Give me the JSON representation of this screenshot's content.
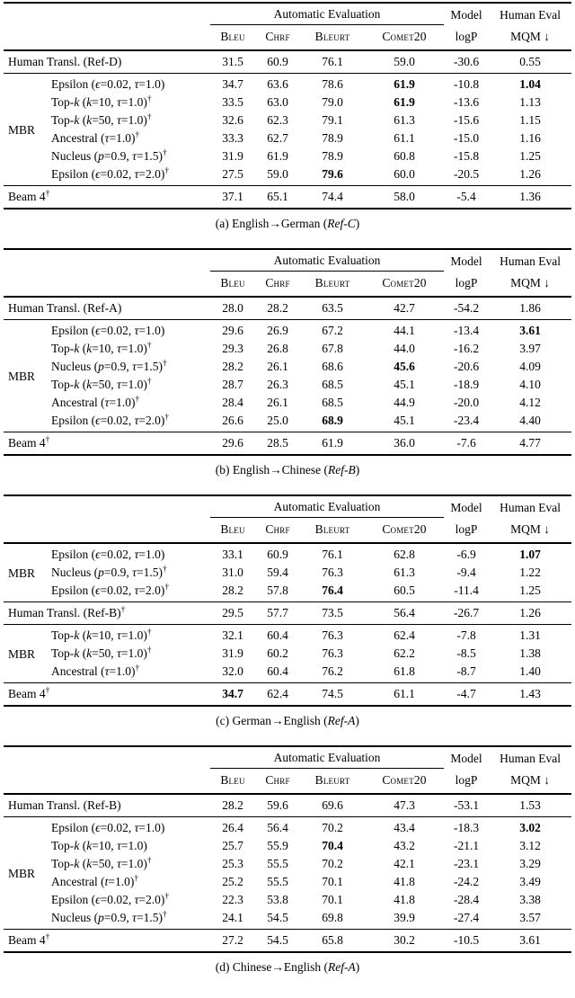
{
  "page": {
    "background": "#ffffff",
    "text_color": "#000000"
  },
  "header": {
    "auto_eval": "Automatic Evaluation",
    "model": "Model",
    "human_eval": "Human Eval",
    "metrics": [
      "Bleu",
      "Chrf",
      "Bleurt",
      "Comet20"
    ],
    "logp": "logP",
    "mqm": "MQM ↓"
  },
  "tables": [
    {
      "id": "a",
      "caption": "(a) English→German (Ref-C)",
      "sections": [
        {
          "rows": [
            {
              "label": "Human Transl. (Ref-D)",
              "values": [
                "31.5",
                "60.9",
                "76.1",
                "59.0",
                "-30.6",
                "0.55"
              ],
              "bold": []
            }
          ]
        },
        {
          "group": "MBR",
          "rows": [
            {
              "label": "Epsilon (ϵ=0.02, τ=1.0)",
              "values": [
                "34.7",
                "63.6",
                "78.6",
                "61.9",
                "-10.8",
                "1.04"
              ],
              "bold": [
                3,
                5
              ]
            },
            {
              "label": "Top-k (k=10, τ=1.0)†",
              "values": [
                "33.5",
                "63.0",
                "79.0",
                "61.9",
                "-13.6",
                "1.13"
              ],
              "bold": [
                3
              ]
            },
            {
              "label": "Top-k (k=50, τ=1.0)†",
              "values": [
                "32.6",
                "62.3",
                "79.1",
                "61.3",
                "-15.6",
                "1.15"
              ],
              "bold": []
            },
            {
              "label": "Ancestral (τ=1.0)†",
              "values": [
                "33.3",
                "62.7",
                "78.9",
                "61.1",
                "-15.0",
                "1.16"
              ],
              "bold": []
            },
            {
              "label": "Nucleus (p=0.9, τ=1.5)†",
              "values": [
                "31.9",
                "61.9",
                "78.9",
                "60.8",
                "-15.8",
                "1.25"
              ],
              "bold": []
            },
            {
              "label": "Epsilon (ϵ=0.02, τ=2.0)†",
              "values": [
                "27.5",
                "59.0",
                "79.6",
                "60.0",
                "-20.5",
                "1.26"
              ],
              "bold": [
                2
              ]
            }
          ]
        },
        {
          "rows": [
            {
              "label": "Beam 4†",
              "values": [
                "37.1",
                "65.1",
                "74.4",
                "58.0",
                "-5.4",
                "1.36"
              ],
              "bold": []
            }
          ]
        }
      ]
    },
    {
      "id": "b",
      "caption": "(b) English→Chinese (Ref-B)",
      "sections": [
        {
          "rows": [
            {
              "label": "Human Transl. (Ref-A)",
              "values": [
                "28.0",
                "28.2",
                "63.5",
                "42.7",
                "-54.2",
                "1.86"
              ],
              "bold": []
            }
          ]
        },
        {
          "group": "MBR",
          "rows": [
            {
              "label": "Epsilon (ϵ=0.02, τ=1.0)",
              "values": [
                "29.6",
                "26.9",
                "67.2",
                "44.1",
                "-13.4",
                "3.61"
              ],
              "bold": [
                5
              ]
            },
            {
              "label": "Top-k (k=10, τ=1.0)†",
              "values": [
                "29.3",
                "26.8",
                "67.8",
                "44.0",
                "-16.2",
                "3.97"
              ],
              "bold": []
            },
            {
              "label": "Nucleus (p=0.9, τ=1.5)†",
              "values": [
                "28.2",
                "26.1",
                "68.6",
                "45.6",
                "-20.6",
                "4.09"
              ],
              "bold": [
                3
              ]
            },
            {
              "label": "Top-k (k=50, τ=1.0)†",
              "values": [
                "28.7",
                "26.3",
                "68.5",
                "45.1",
                "-18.9",
                "4.10"
              ],
              "bold": []
            },
            {
              "label": "Ancestral (τ=1.0)†",
              "values": [
                "28.4",
                "26.1",
                "68.5",
                "44.9",
                "-20.0",
                "4.12"
              ],
              "bold": []
            },
            {
              "label": "Epsilon (ϵ=0.02, τ=2.0)†",
              "values": [
                "26.6",
                "25.0",
                "68.9",
                "45.1",
                "-23.4",
                "4.40"
              ],
              "bold": [
                2
              ]
            }
          ]
        },
        {
          "rows": [
            {
              "label": "Beam 4†",
              "values": [
                "29.6",
                "28.5",
                "61.9",
                "36.0",
                "-7.6",
                "4.77"
              ],
              "bold": []
            }
          ]
        }
      ]
    },
    {
      "id": "c",
      "caption": "(c) German→English (Ref-A)",
      "sections": [
        {
          "group": "MBR",
          "rows": [
            {
              "label": "Epsilon (ϵ=0.02, τ=1.0)",
              "values": [
                "33.1",
                "60.9",
                "76.1",
                "62.8",
                "-6.9",
                "1.07"
              ],
              "bold": [
                5
              ]
            },
            {
              "label": "Nucleus (p=0.9, τ=1.5)†",
              "values": [
                "31.0",
                "59.4",
                "76.3",
                "61.3",
                "-9.4",
                "1.22"
              ],
              "bold": []
            },
            {
              "label": "Epsilon (ϵ=0.02, τ=2.0)†",
              "values": [
                "28.2",
                "57.8",
                "76.4",
                "60.5",
                "-11.4",
                "1.25"
              ],
              "bold": [
                2
              ]
            }
          ]
        },
        {
          "rows": [
            {
              "label": "Human Transl. (Ref-B)†",
              "values": [
                "29.5",
                "57.7",
                "73.5",
                "56.4",
                "-26.7",
                "1.26"
              ],
              "bold": []
            }
          ]
        },
        {
          "group": "MBR",
          "rows": [
            {
              "label": "Top-k (k=10, τ=1.0)†",
              "values": [
                "32.1",
                "60.4",
                "76.3",
                "62.4",
                "-7.8",
                "1.31"
              ],
              "bold": []
            },
            {
              "label": "Top-k (k=50, τ=1.0)†",
              "values": [
                "31.9",
                "60.2",
                "76.3",
                "62.2",
                "-8.5",
                "1.38"
              ],
              "bold": []
            },
            {
              "label": "Ancestral (τ=1.0)†",
              "values": [
                "32.0",
                "60.4",
                "76.2",
                "61.8",
                "-8.7",
                "1.40"
              ],
              "bold": []
            }
          ]
        },
        {
          "rows": [
            {
              "label": "Beam 4†",
              "values": [
                "34.7",
                "62.4",
                "74.5",
                "61.1",
                "-4.7",
                "1.43"
              ],
              "bold": [
                0
              ]
            }
          ]
        }
      ]
    },
    {
      "id": "d",
      "caption": "(d) Chinese→English (Ref-A)",
      "sections": [
        {
          "rows": [
            {
              "label": "Human Transl. (Ref-B)",
              "values": [
                "28.2",
                "59.6",
                "69.6",
                "47.3",
                "-53.1",
                "1.53"
              ],
              "bold": []
            }
          ]
        },
        {
          "group": "MBR",
          "rows": [
            {
              "label": "Epsilon (ϵ=0.02, τ=1.0)",
              "values": [
                "26.4",
                "56.4",
                "70.2",
                "43.4",
                "-18.3",
                "3.02"
              ],
              "bold": [
                5
              ]
            },
            {
              "label": "Top-k (k=10, τ=1.0)",
              "values": [
                "25.7",
                "55.9",
                "70.4",
                "43.2",
                "-21.1",
                "3.12"
              ],
              "bold": [
                2
              ]
            },
            {
              "label": "Top-k (k=50, τ=1.0)†",
              "values": [
                "25.3",
                "55.5",
                "70.2",
                "42.1",
                "-23.1",
                "3.29"
              ],
              "bold": []
            },
            {
              "label": "Ancestral (t=1.0)†",
              "values": [
                "25.2",
                "55.5",
                "70.1",
                "41.8",
                "-24.2",
                "3.49"
              ],
              "bold": []
            },
            {
              "label": "Epsilon (ϵ=0.02, τ=2.0)†",
              "values": [
                "22.3",
                "53.8",
                "70.1",
                "41.8",
                "-28.4",
                "3.38"
              ],
              "bold": []
            },
            {
              "label": "Nucleus (p=0.9, τ=1.5)†",
              "values": [
                "24.1",
                "54.5",
                "69.8",
                "39.9",
                "-27.4",
                "3.57"
              ],
              "bold": []
            }
          ]
        },
        {
          "rows": [
            {
              "label": "Beam 4†",
              "values": [
                "27.2",
                "54.5",
                "65.8",
                "30.2",
                "-10.5",
                "3.61"
              ],
              "bold": []
            }
          ]
        }
      ]
    }
  ]
}
